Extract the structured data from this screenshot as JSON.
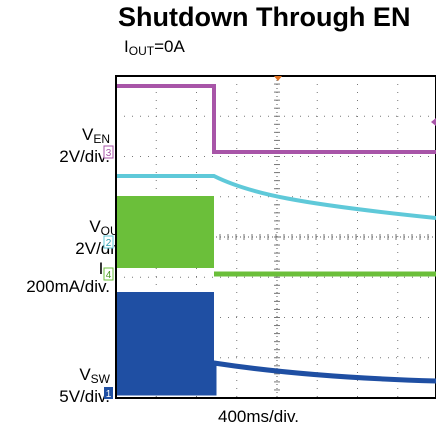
{
  "chart_data": {
    "type": "line",
    "title": "Shutdown Through EN",
    "subtitle": {
      "base": "I",
      "sub": "OUT",
      "rest": "=0A"
    },
    "xlabel": "400ms/div.",
    "grid": true,
    "channels": [
      {
        "id": "3",
        "color": "#a855a8",
        "name_base": "V",
        "name_sub": "EN",
        "scale": "2V/div."
      },
      {
        "id": "2",
        "color": "#5fc9d9",
        "name_base": "V",
        "name_sub": "OUT",
        "scale": "2V/div."
      },
      {
        "id": "4",
        "color": "#6bbf3a",
        "name_base": "I",
        "name_sub": "L",
        "scale": "200mA/div."
      },
      {
        "id": "1",
        "color": "#1f4fa3",
        "name_base": "V",
        "name_sub": "SW",
        "scale": "5V/div."
      }
    ]
  }
}
